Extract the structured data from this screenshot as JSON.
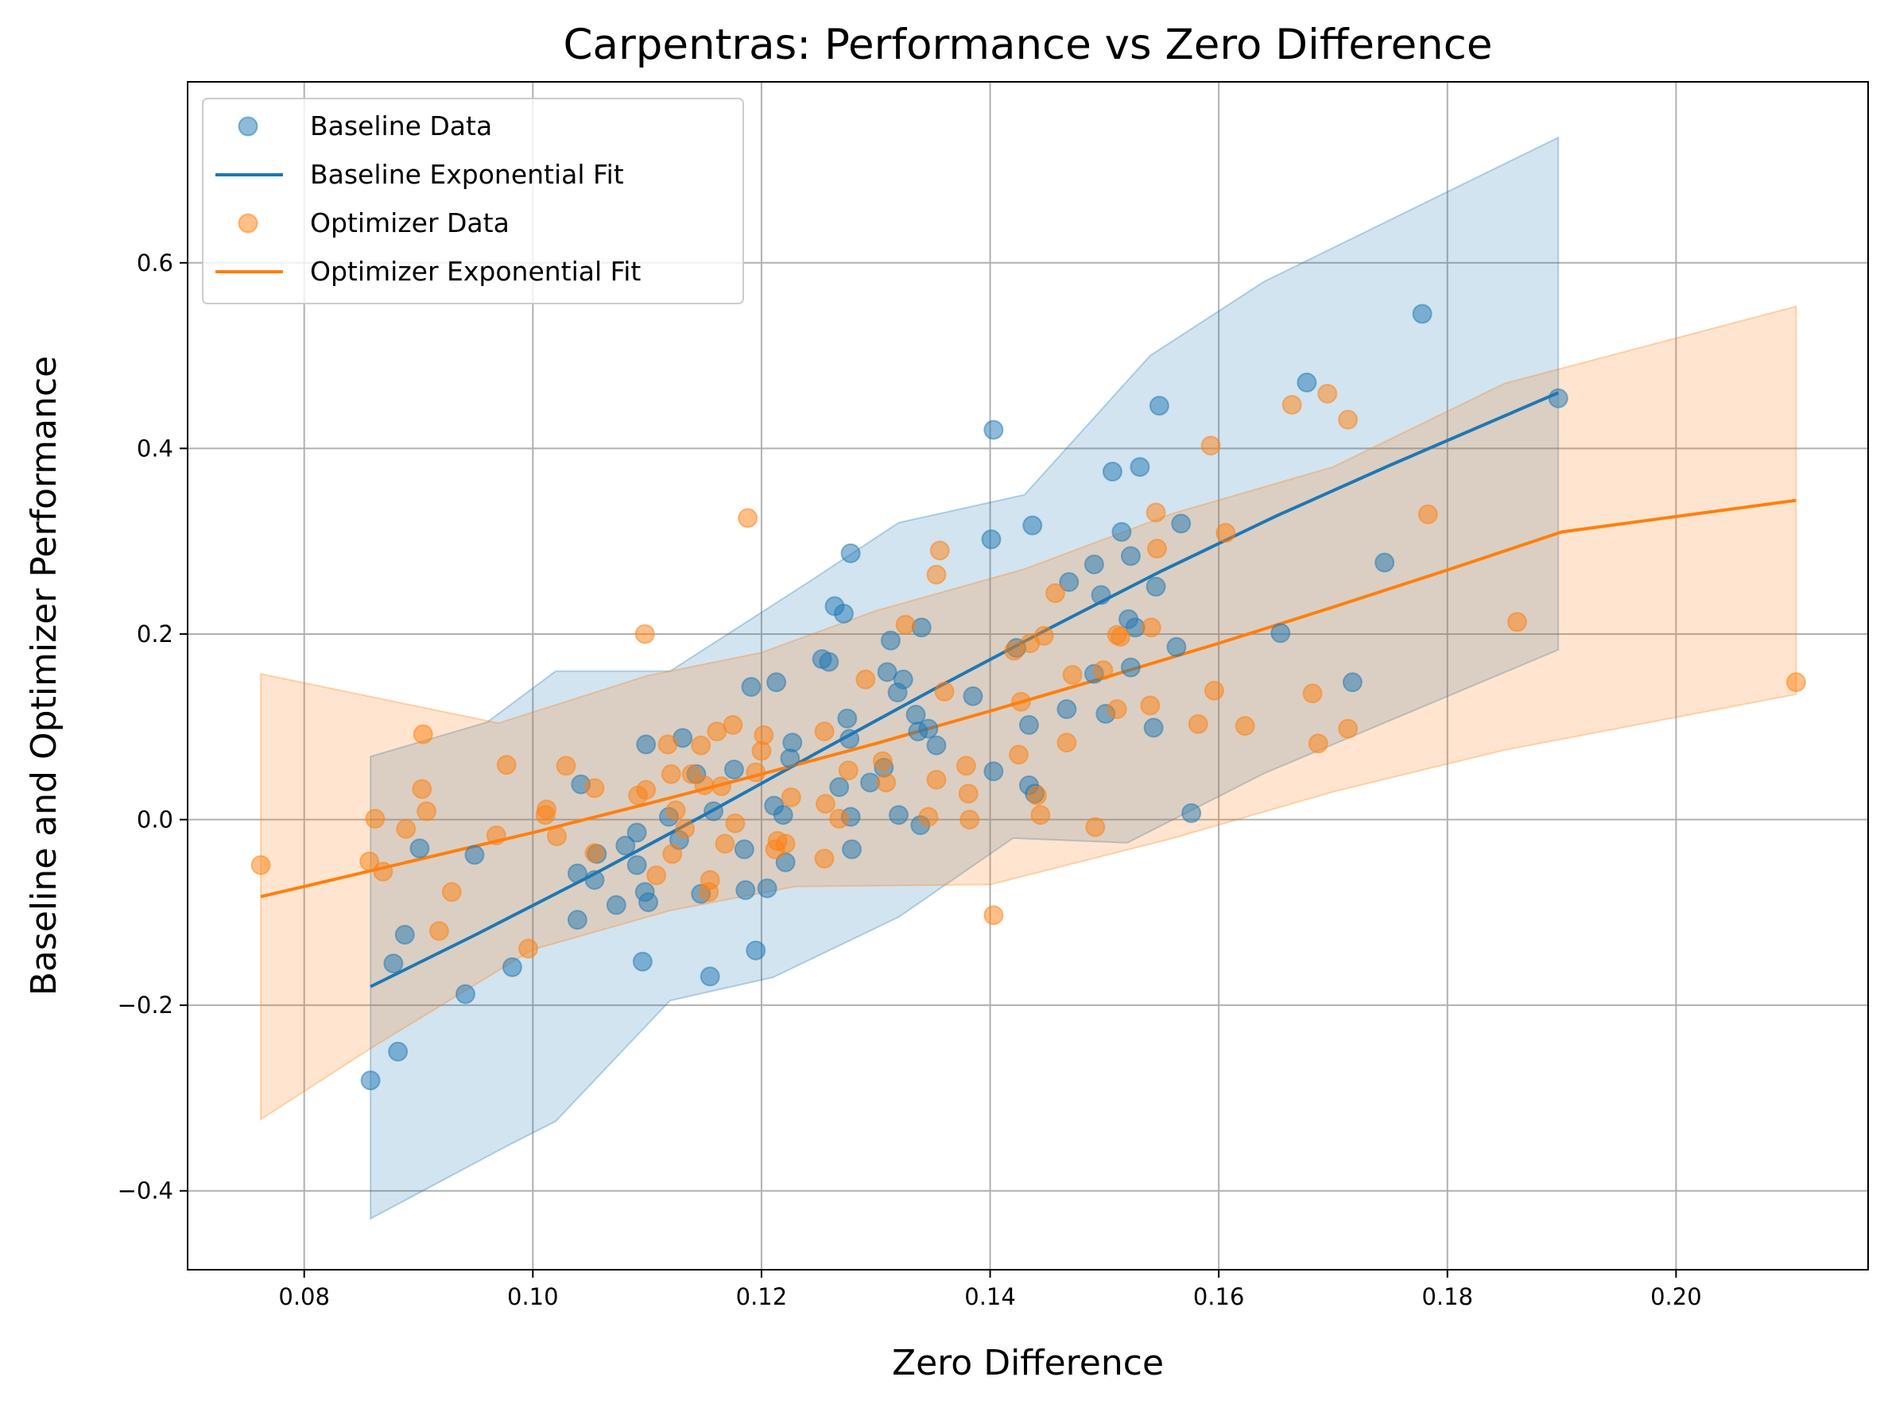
{
  "chart_data": {
    "type": "scatter",
    "title": "Carpentras: Performance vs Zero Difference",
    "xlabel": "Zero Difference",
    "ylabel": "Baseline and Optimizer Performance",
    "xlim": [
      0.0698,
      0.2168
    ],
    "ylim": [
      -0.485,
      0.795
    ],
    "xticks": [
      0.08,
      0.1,
      0.12,
      0.14,
      0.16,
      0.18,
      0.2
    ],
    "xtick_labels": [
      "0.08",
      "0.10",
      "0.12",
      "0.14",
      "0.16",
      "0.18",
      "0.20"
    ],
    "yticks": [
      -0.4,
      -0.2,
      0.0,
      0.2,
      0.4,
      0.6
    ],
    "ytick_labels": [
      "−0.4",
      "−0.2",
      "0.0",
      "0.2",
      "0.4",
      "0.6"
    ],
    "grid": true,
    "legend_position": "top-left",
    "colors": {
      "baseline": "#1f77b4",
      "optimizer": "#ff7f0e"
    },
    "legend": [
      {
        "label": "Baseline Data",
        "kind": "marker",
        "color": "#1f77b4"
      },
      {
        "label": "Baseline Exponential Fit",
        "kind": "line",
        "color": "#1f77b4"
      },
      {
        "label": "Optimizer Data",
        "kind": "marker",
        "color": "#ff7f0e"
      },
      {
        "label": "Optimizer Exponential Fit",
        "kind": "line",
        "color": "#ff7f0e"
      }
    ],
    "series": [
      {
        "name": "Baseline Data",
        "color": "#1f77b4",
        "points": [
          [
            0.0858,
            -0.281
          ],
          [
            0.0882,
            -0.25
          ],
          [
            0.0878,
            -0.155
          ],
          [
            0.0888,
            -0.124
          ],
          [
            0.0901,
            -0.031
          ],
          [
            0.0941,
            -0.188
          ],
          [
            0.0949,
            -0.038
          ],
          [
            0.0982,
            -0.159
          ],
          [
            0.1039,
            -0.108
          ],
          [
            0.1039,
            -0.058
          ],
          [
            0.1042,
            0.038
          ],
          [
            0.1054,
            -0.065
          ],
          [
            0.1056,
            -0.037
          ],
          [
            0.1073,
            -0.092
          ],
          [
            0.1081,
            -0.028
          ],
          [
            0.1091,
            -0.049
          ],
          [
            0.1091,
            -0.014
          ],
          [
            0.1096,
            -0.153
          ],
          [
            0.1098,
            -0.078
          ],
          [
            0.1099,
            0.081
          ],
          [
            0.1101,
            -0.089
          ],
          [
            0.1119,
            0.003
          ],
          [
            0.1128,
            -0.022
          ],
          [
            0.1131,
            0.088
          ],
          [
            0.1143,
            0.049
          ],
          [
            0.1147,
            -0.08
          ],
          [
            0.1155,
            -0.169
          ],
          [
            0.1158,
            0.009
          ],
          [
            0.1176,
            0.054
          ],
          [
            0.1185,
            -0.032
          ],
          [
            0.1186,
            -0.076
          ],
          [
            0.1191,
            0.143
          ],
          [
            0.1195,
            -0.141
          ],
          [
            0.1205,
            -0.074
          ],
          [
            0.1211,
            0.015
          ],
          [
            0.1213,
            0.148
          ],
          [
            0.1219,
            0.005
          ],
          [
            0.1221,
            -0.046
          ],
          [
            0.1225,
            0.066
          ],
          [
            0.1227,
            0.083
          ],
          [
            0.1253,
            0.173
          ],
          [
            0.1259,
            0.17
          ],
          [
            0.1264,
            0.23
          ],
          [
            0.1268,
            0.035
          ],
          [
            0.1272,
            0.222
          ],
          [
            0.1275,
            0.109
          ],
          [
            0.1277,
            0.087
          ],
          [
            0.1278,
            0.287
          ],
          [
            0.1278,
            0.003
          ],
          [
            0.1279,
            -0.032
          ],
          [
            0.1295,
            0.04
          ],
          [
            0.1307,
            0.056
          ],
          [
            0.131,
            0.159
          ],
          [
            0.1313,
            0.193
          ],
          [
            0.1319,
            0.137
          ],
          [
            0.132,
            0.005
          ],
          [
            0.1324,
            0.151
          ],
          [
            0.1335,
            0.113
          ],
          [
            0.1337,
            0.095
          ],
          [
            0.1339,
            -0.006
          ],
          [
            0.134,
            0.207
          ],
          [
            0.1346,
            0.098
          ],
          [
            0.1353,
            0.08
          ],
          [
            0.1385,
            0.133
          ],
          [
            0.1401,
            0.302
          ],
          [
            0.1403,
            0.052
          ],
          [
            0.1403,
            0.42
          ],
          [
            0.1423,
            0.185
          ],
          [
            0.1434,
            0.102
          ],
          [
            0.1434,
            0.037
          ],
          [
            0.1437,
            0.317
          ],
          [
            0.1439,
            0.028
          ],
          [
            0.1467,
            0.119
          ],
          [
            0.1469,
            0.256
          ],
          [
            0.1491,
            0.275
          ],
          [
            0.1491,
            0.157
          ],
          [
            0.1497,
            0.242
          ],
          [
            0.1501,
            0.114
          ],
          [
            0.1507,
            0.375
          ],
          [
            0.1515,
            0.31
          ],
          [
            0.1521,
            0.216
          ],
          [
            0.1523,
            0.284
          ],
          [
            0.1523,
            0.164
          ],
          [
            0.1527,
            0.207
          ],
          [
            0.1531,
            0.38
          ],
          [
            0.1543,
            0.099
          ],
          [
            0.1545,
            0.251
          ],
          [
            0.1548,
            0.446
          ],
          [
            0.1563,
            0.186
          ],
          [
            0.1567,
            0.319
          ],
          [
            0.1576,
            0.007
          ],
          [
            0.1654,
            0.201
          ],
          [
            0.1677,
            0.471
          ],
          [
            0.1717,
            0.148
          ],
          [
            0.1745,
            0.277
          ],
          [
            0.1778,
            0.545
          ],
          [
            0.1897,
            0.454
          ]
        ]
      },
      {
        "name": "Baseline Exponential Fit",
        "color": "#1f77b4",
        "line": [
          [
            0.0858,
            -0.18
          ],
          [
            0.095,
            -0.124
          ],
          [
            0.105,
            -0.061
          ],
          [
            0.115,
            0.005
          ],
          [
            0.125,
            0.073
          ],
          [
            0.135,
            0.14
          ],
          [
            0.145,
            0.205
          ],
          [
            0.155,
            0.268
          ],
          [
            0.165,
            0.327
          ],
          [
            0.175,
            0.382
          ],
          [
            0.1897,
            0.46
          ]
        ],
        "band_upper": [
          [
            0.0858,
            0.068
          ],
          [
            0.096,
            0.105
          ],
          [
            0.102,
            0.16
          ],
          [
            0.112,
            0.16
          ],
          [
            0.124,
            0.255
          ],
          [
            0.132,
            0.32
          ],
          [
            0.143,
            0.35
          ],
          [
            0.154,
            0.5
          ],
          [
            0.164,
            0.58
          ],
          [
            0.1897,
            0.735
          ]
        ],
        "band_lower": [
          [
            0.0858,
            -0.43
          ],
          [
            0.098,
            -0.35
          ],
          [
            0.102,
            -0.325
          ],
          [
            0.112,
            -0.195
          ],
          [
            0.121,
            -0.17
          ],
          [
            0.132,
            -0.105
          ],
          [
            0.142,
            -0.02
          ],
          [
            0.152,
            -0.025
          ],
          [
            0.164,
            0.05
          ],
          [
            0.1897,
            0.183
          ]
        ]
      },
      {
        "name": "Optimizer Data",
        "color": "#ff7f0e",
        "points": [
          [
            0.0762,
            -0.049
          ],
          [
            0.0857,
            -0.045
          ],
          [
            0.0862,
            0.001
          ],
          [
            0.0869,
            -0.056
          ],
          [
            0.0889,
            -0.01
          ],
          [
            0.0903,
            0.033
          ],
          [
            0.0904,
            0.092
          ],
          [
            0.0907,
            0.009
          ],
          [
            0.0918,
            -0.12
          ],
          [
            0.0929,
            -0.078
          ],
          [
            0.0968,
            -0.017
          ],
          [
            0.0977,
            0.059
          ],
          [
            0.0996,
            -0.139
          ],
          [
            0.1012,
            0.011
          ],
          [
            0.1011,
            0.005
          ],
          [
            0.1021,
            -0.018
          ],
          [
            0.1029,
            0.058
          ],
          [
            0.1054,
            -0.036
          ],
          [
            0.1054,
            0.034
          ],
          [
            0.1092,
            0.026
          ],
          [
            0.1098,
            0.2
          ],
          [
            0.1099,
            0.032
          ],
          [
            0.1108,
            -0.06
          ],
          [
            0.1118,
            0.081
          ],
          [
            0.1121,
            0.049
          ],
          [
            0.1122,
            -0.037
          ],
          [
            0.1125,
            0.01
          ],
          [
            0.1133,
            -0.01
          ],
          [
            0.1139,
            0.049
          ],
          [
            0.1147,
            0.08
          ],
          [
            0.115,
            0.037
          ],
          [
            0.1154,
            -0.078
          ],
          [
            0.1155,
            -0.065
          ],
          [
            0.1161,
            0.095
          ],
          [
            0.1165,
            0.036
          ],
          [
            0.1168,
            -0.026
          ],
          [
            0.1175,
            0.102
          ],
          [
            0.1177,
            -0.004
          ],
          [
            0.1188,
            0.325
          ],
          [
            0.1195,
            0.051
          ],
          [
            0.12,
            0.074
          ],
          [
            0.1202,
            0.091
          ],
          [
            0.1212,
            -0.032
          ],
          [
            0.1214,
            -0.023
          ],
          [
            0.1221,
            -0.026
          ],
          [
            0.1226,
            0.024
          ],
          [
            0.1255,
            0.095
          ],
          [
            0.1255,
            -0.042
          ],
          [
            0.1256,
            0.017
          ],
          [
            0.1268,
            0.001
          ],
          [
            0.1276,
            0.053
          ],
          [
            0.1291,
            0.151
          ],
          [
            0.1306,
            0.063
          ],
          [
            0.1309,
            0.04
          ],
          [
            0.1326,
            0.21
          ],
          [
            0.1346,
            0.003
          ],
          [
            0.1353,
            0.264
          ],
          [
            0.1353,
            0.043
          ],
          [
            0.1356,
            0.29
          ],
          [
            0.136,
            0.138
          ],
          [
            0.1379,
            0.058
          ],
          [
            0.1381,
            0.028
          ],
          [
            0.1382,
            0.0
          ],
          [
            0.1403,
            -0.103
          ],
          [
            0.1421,
            0.182
          ],
          [
            0.1425,
            0.07
          ],
          [
            0.1427,
            0.127
          ],
          [
            0.1435,
            0.19
          ],
          [
            0.1441,
            0.026
          ],
          [
            0.1444,
            0.005
          ],
          [
            0.1447,
            0.198
          ],
          [
            0.1457,
            0.244
          ],
          [
            0.1467,
            0.083
          ],
          [
            0.1472,
            0.156
          ],
          [
            0.1492,
            -0.008
          ],
          [
            0.1499,
            0.161
          ],
          [
            0.1511,
            0.199
          ],
          [
            0.1511,
            0.119
          ],
          [
            0.1514,
            0.197
          ],
          [
            0.154,
            0.123
          ],
          [
            0.1541,
            0.207
          ],
          [
            0.1545,
            0.331
          ],
          [
            0.1546,
            0.292
          ],
          [
            0.1582,
            0.103
          ],
          [
            0.1593,
            0.403
          ],
          [
            0.1596,
            0.139
          ],
          [
            0.1606,
            0.309
          ],
          [
            0.1623,
            0.101
          ],
          [
            0.1664,
            0.447
          ],
          [
            0.1682,
            0.136
          ],
          [
            0.1687,
            0.082
          ],
          [
            0.1695,
            0.459
          ],
          [
            0.1713,
            0.098
          ],
          [
            0.1713,
            0.431
          ],
          [
            0.1783,
            0.329
          ],
          [
            0.1861,
            0.213
          ],
          [
            0.2105,
            0.148
          ]
        ]
      },
      {
        "name": "Optimizer Exponential Fit",
        "color": "#ff7f0e",
        "line": [
          [
            0.0762,
            -0.083
          ],
          [
            0.09,
            -0.043
          ],
          [
            0.1,
            -0.014
          ],
          [
            0.11,
            0.017
          ],
          [
            0.12,
            0.049
          ],
          [
            0.13,
            0.082
          ],
          [
            0.14,
            0.117
          ],
          [
            0.15,
            0.153
          ],
          [
            0.16,
            0.19
          ],
          [
            0.17,
            0.229
          ],
          [
            0.18,
            0.269
          ],
          [
            0.19,
            0.31
          ],
          [
            0.2105,
            0.344
          ]
        ],
        "band_upper": [
          [
            0.0762,
            0.157
          ],
          [
            0.097,
            0.104
          ],
          [
            0.11,
            0.155
          ],
          [
            0.12,
            0.18
          ],
          [
            0.13,
            0.225
          ],
          [
            0.143,
            0.27
          ],
          [
            0.156,
            0.33
          ],
          [
            0.17,
            0.38
          ],
          [
            0.185,
            0.47
          ],
          [
            0.2105,
            0.553
          ]
        ],
        "band_lower": [
          [
            0.0762,
            -0.323
          ],
          [
            0.086,
            -0.245
          ],
          [
            0.1,
            -0.14
          ],
          [
            0.112,
            -0.098
          ],
          [
            0.123,
            -0.072
          ],
          [
            0.14,
            -0.07
          ],
          [
            0.156,
            -0.02
          ],
          [
            0.17,
            0.03
          ],
          [
            0.185,
            0.075
          ],
          [
            0.2105,
            0.135
          ]
        ]
      }
    ]
  }
}
